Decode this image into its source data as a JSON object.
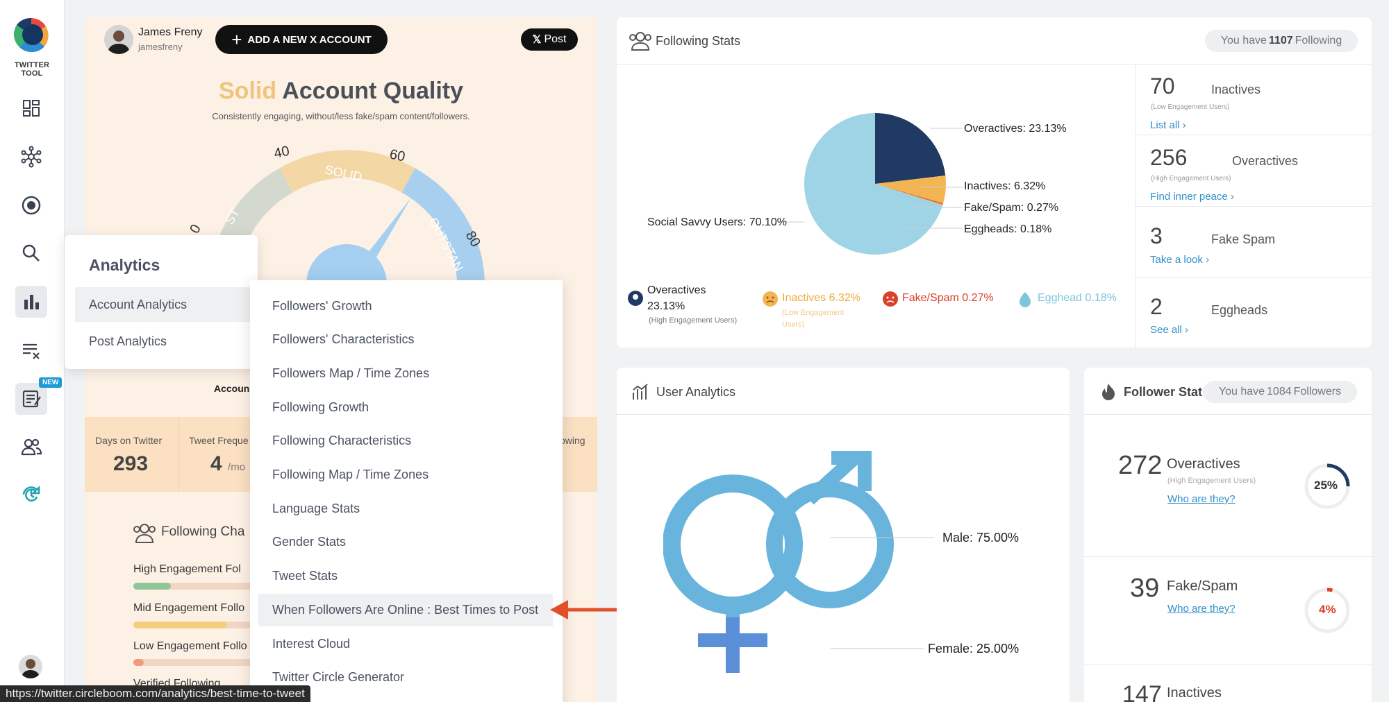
{
  "app": {
    "logo_text": "TWITTER TOOL",
    "new_badge": "NEW"
  },
  "account": {
    "name": "James Freny",
    "handle": "jamesfreny",
    "add_button": "ADD A NEW X ACCOUNT",
    "post_button": "Post",
    "quality_word": "Solid",
    "quality_rest": "Account Quality",
    "quality_subtitle": "Consistently engaging, without/less fake/spam content/followers.",
    "gauge": {
      "labels": [
        "0",
        "40",
        "60",
        "80"
      ],
      "solid_label": "SOLID",
      "left_band_label": "ST",
      "right_band_label": "OUTSTAN",
      "value_partial": "78"
    },
    "hidden_label": "Accoun",
    "stats": [
      {
        "label": "Days on Twitter",
        "value": "293",
        "unit": ""
      },
      {
        "label": "Tweet Freque",
        "value": "4",
        "unit": "/mo"
      },
      {
        "label": "owing",
        "value": "",
        "unit": ""
      }
    ],
    "following_char": {
      "title": "Following Cha",
      "rows": [
        {
          "label": "High Engagement Fol",
          "fill": 0.18,
          "color": "#8fc79a"
        },
        {
          "label": "Mid Engagement Follo",
          "fill": 0.45,
          "color": "#f4cd7d"
        },
        {
          "label": "Low Engagement Follo",
          "fill": 0.05,
          "color": "#f29a80"
        }
      ],
      "cut_label": "Verified Following"
    }
  },
  "menu": {
    "title": "Analytics",
    "items": [
      "Account Analytics",
      "Post Analytics"
    ],
    "submenu": [
      "Followers' Growth",
      "Followers' Characteristics",
      "Followers Map / Time Zones",
      "Following Growth",
      "Following Characteristics",
      "Following Map / Time Zones",
      "Language Stats",
      "Gender Stats",
      "Tweet Stats",
      "When Followers Are Online : Best Times to Post",
      "Interest Cloud",
      "Twitter Circle Generator"
    ]
  },
  "status_url": "https://twitter.circleboom.com/analytics/best-time-to-tweet",
  "following_stats": {
    "title": "Following Stats",
    "pill_prefix": "You have",
    "pill_count": "1107",
    "pill_suffix": "Following",
    "chart_data": {
      "type": "pie",
      "labels": [
        "Overactives",
        "Inactives",
        "Fake/Spam",
        "Eggheads",
        "Social Savvy Users"
      ],
      "values": [
        23.13,
        6.32,
        0.27,
        0.18,
        70.1
      ],
      "colors": [
        "#203a63",
        "#f3b552",
        "#e2582e",
        "#e8a33b",
        "#9fd4e6"
      ],
      "callouts": [
        "Overactives: 23.13%",
        "Inactives: 6.32%",
        "Fake/Spam: 0.27%",
        "Eggheads: 0.18%",
        "Social Savvy Users: 70.10%"
      ]
    },
    "legend": [
      {
        "title": "Overactives",
        "line2": "23.13%",
        "sub": "(High Engagement Users)",
        "color": "#203a63"
      },
      {
        "title": "Inactives 6.32%",
        "sub1": "(Low Engagement",
        "sub2": "Users)",
        "color": "#f3b552"
      },
      {
        "title": "Fake/Spam 0.27%",
        "color": "#d8412a"
      },
      {
        "title": "Egghead 0.18%",
        "color": "#7ec5dc"
      }
    ],
    "kpis": [
      {
        "num": "70",
        "label": "Inactives",
        "sub": "(Low Engagement Users)",
        "link": "List all ›"
      },
      {
        "num": "256",
        "label": "Overactives",
        "sub": "(High Engagement Users)",
        "link": "Find inner peace ›"
      },
      {
        "num": "3",
        "label": "Fake Spam",
        "sub": "",
        "link": "Take a look ›"
      },
      {
        "num": "2",
        "label": "Eggheads",
        "sub": "",
        "link": "See all ›"
      }
    ]
  },
  "user_analytics": {
    "title": "User Analytics",
    "chart_data": {
      "type": "pie",
      "labels": [
        "Male",
        "Female"
      ],
      "values": [
        75.0,
        25.0
      ],
      "callouts": [
        "Male: 75.00%",
        "Female: 25.00%"
      ]
    }
  },
  "follower_stats": {
    "title": "Follower Stats",
    "pill_prefix": "You have",
    "pill_count": "1084",
    "pill_suffix": "Followers",
    "rows": [
      {
        "num": "272",
        "label": "Overactives",
        "sub": "(High Engagement Users)",
        "link": "Who are they?",
        "pct": "25%",
        "fraction": 0.25,
        "color": "#203a63",
        "text_color": "#333"
      },
      {
        "num": "39",
        "label": "Fake/Spam",
        "sub": "",
        "link": "Who are they?",
        "pct": "4%",
        "fraction": 0.04,
        "color": "#d8412a",
        "text_color": "#d8412a"
      },
      {
        "num": "147",
        "label": "Inactives"
      }
    ]
  }
}
